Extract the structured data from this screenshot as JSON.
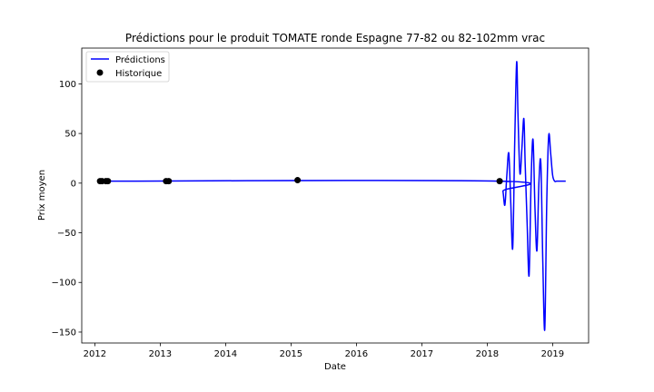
{
  "chart_data": {
    "type": "line",
    "title": "Prédictions pour le produit TOMATE ronde Espagne 77-82 ou 82-102mm vrac",
    "xlabel": "Date",
    "ylabel": "Prix moyen",
    "xlim": [
      2011.8,
      2019.55
    ],
    "ylim": [
      -161,
      136
    ],
    "x_ticks": [
      2012,
      2013,
      2014,
      2015,
      2016,
      2017,
      2018,
      2019
    ],
    "x_tick_labels": [
      "2012",
      "2013",
      "2014",
      "2015",
      "2016",
      "2017",
      "2018",
      "2019"
    ],
    "y_ticks": [
      100,
      50,
      0,
      -50,
      -100,
      -150
    ],
    "y_tick_labels": [
      "100",
      "50",
      "0",
      "−50",
      "−100",
      "−150"
    ],
    "grid": false,
    "legend": {
      "position": "top-left",
      "entries": [
        {
          "label": "Prédictions",
          "type": "line",
          "color": "#0000ff"
        },
        {
          "label": "Historique",
          "type": "marker",
          "color": "#000000"
        }
      ]
    },
    "series": [
      {
        "name": "Prédictions",
        "type": "line",
        "color": "#0000ff",
        "x": [
          2012.08,
          2018.2,
          2018.24,
          2018.27,
          2018.3,
          2018.33,
          2018.36,
          2018.39,
          2018.42,
          2018.45,
          2018.47,
          2018.5,
          2018.53,
          2018.56,
          2018.58,
          2018.61,
          2018.64,
          2018.67,
          2018.7,
          2018.73,
          2018.76,
          2018.79,
          2018.82,
          2018.85,
          2018.88,
          2018.91,
          2018.94,
          2018.97,
          2019.0,
          2019.03,
          2019.06,
          2019.09,
          2019.12,
          2019.18,
          2019.2
        ],
        "y": [
          2,
          2,
          -8,
          -22,
          8,
          30,
          -20,
          -65,
          40,
          122,
          70,
          10,
          35,
          65,
          20,
          -40,
          -93,
          0,
          44,
          -25,
          -68,
          0,
          20,
          -80,
          -147,
          -20,
          48,
          30,
          8,
          2,
          2,
          2,
          2,
          2,
          2
        ]
      },
      {
        "name": "Historique",
        "type": "scatter",
        "color": "#000000",
        "x": [
          2012.08,
          2012.11,
          2012.17,
          2012.2,
          2013.09,
          2013.13,
          2015.1,
          2018.19
        ],
        "y": [
          2,
          2,
          2,
          2,
          2,
          2,
          3,
          2
        ]
      }
    ]
  }
}
